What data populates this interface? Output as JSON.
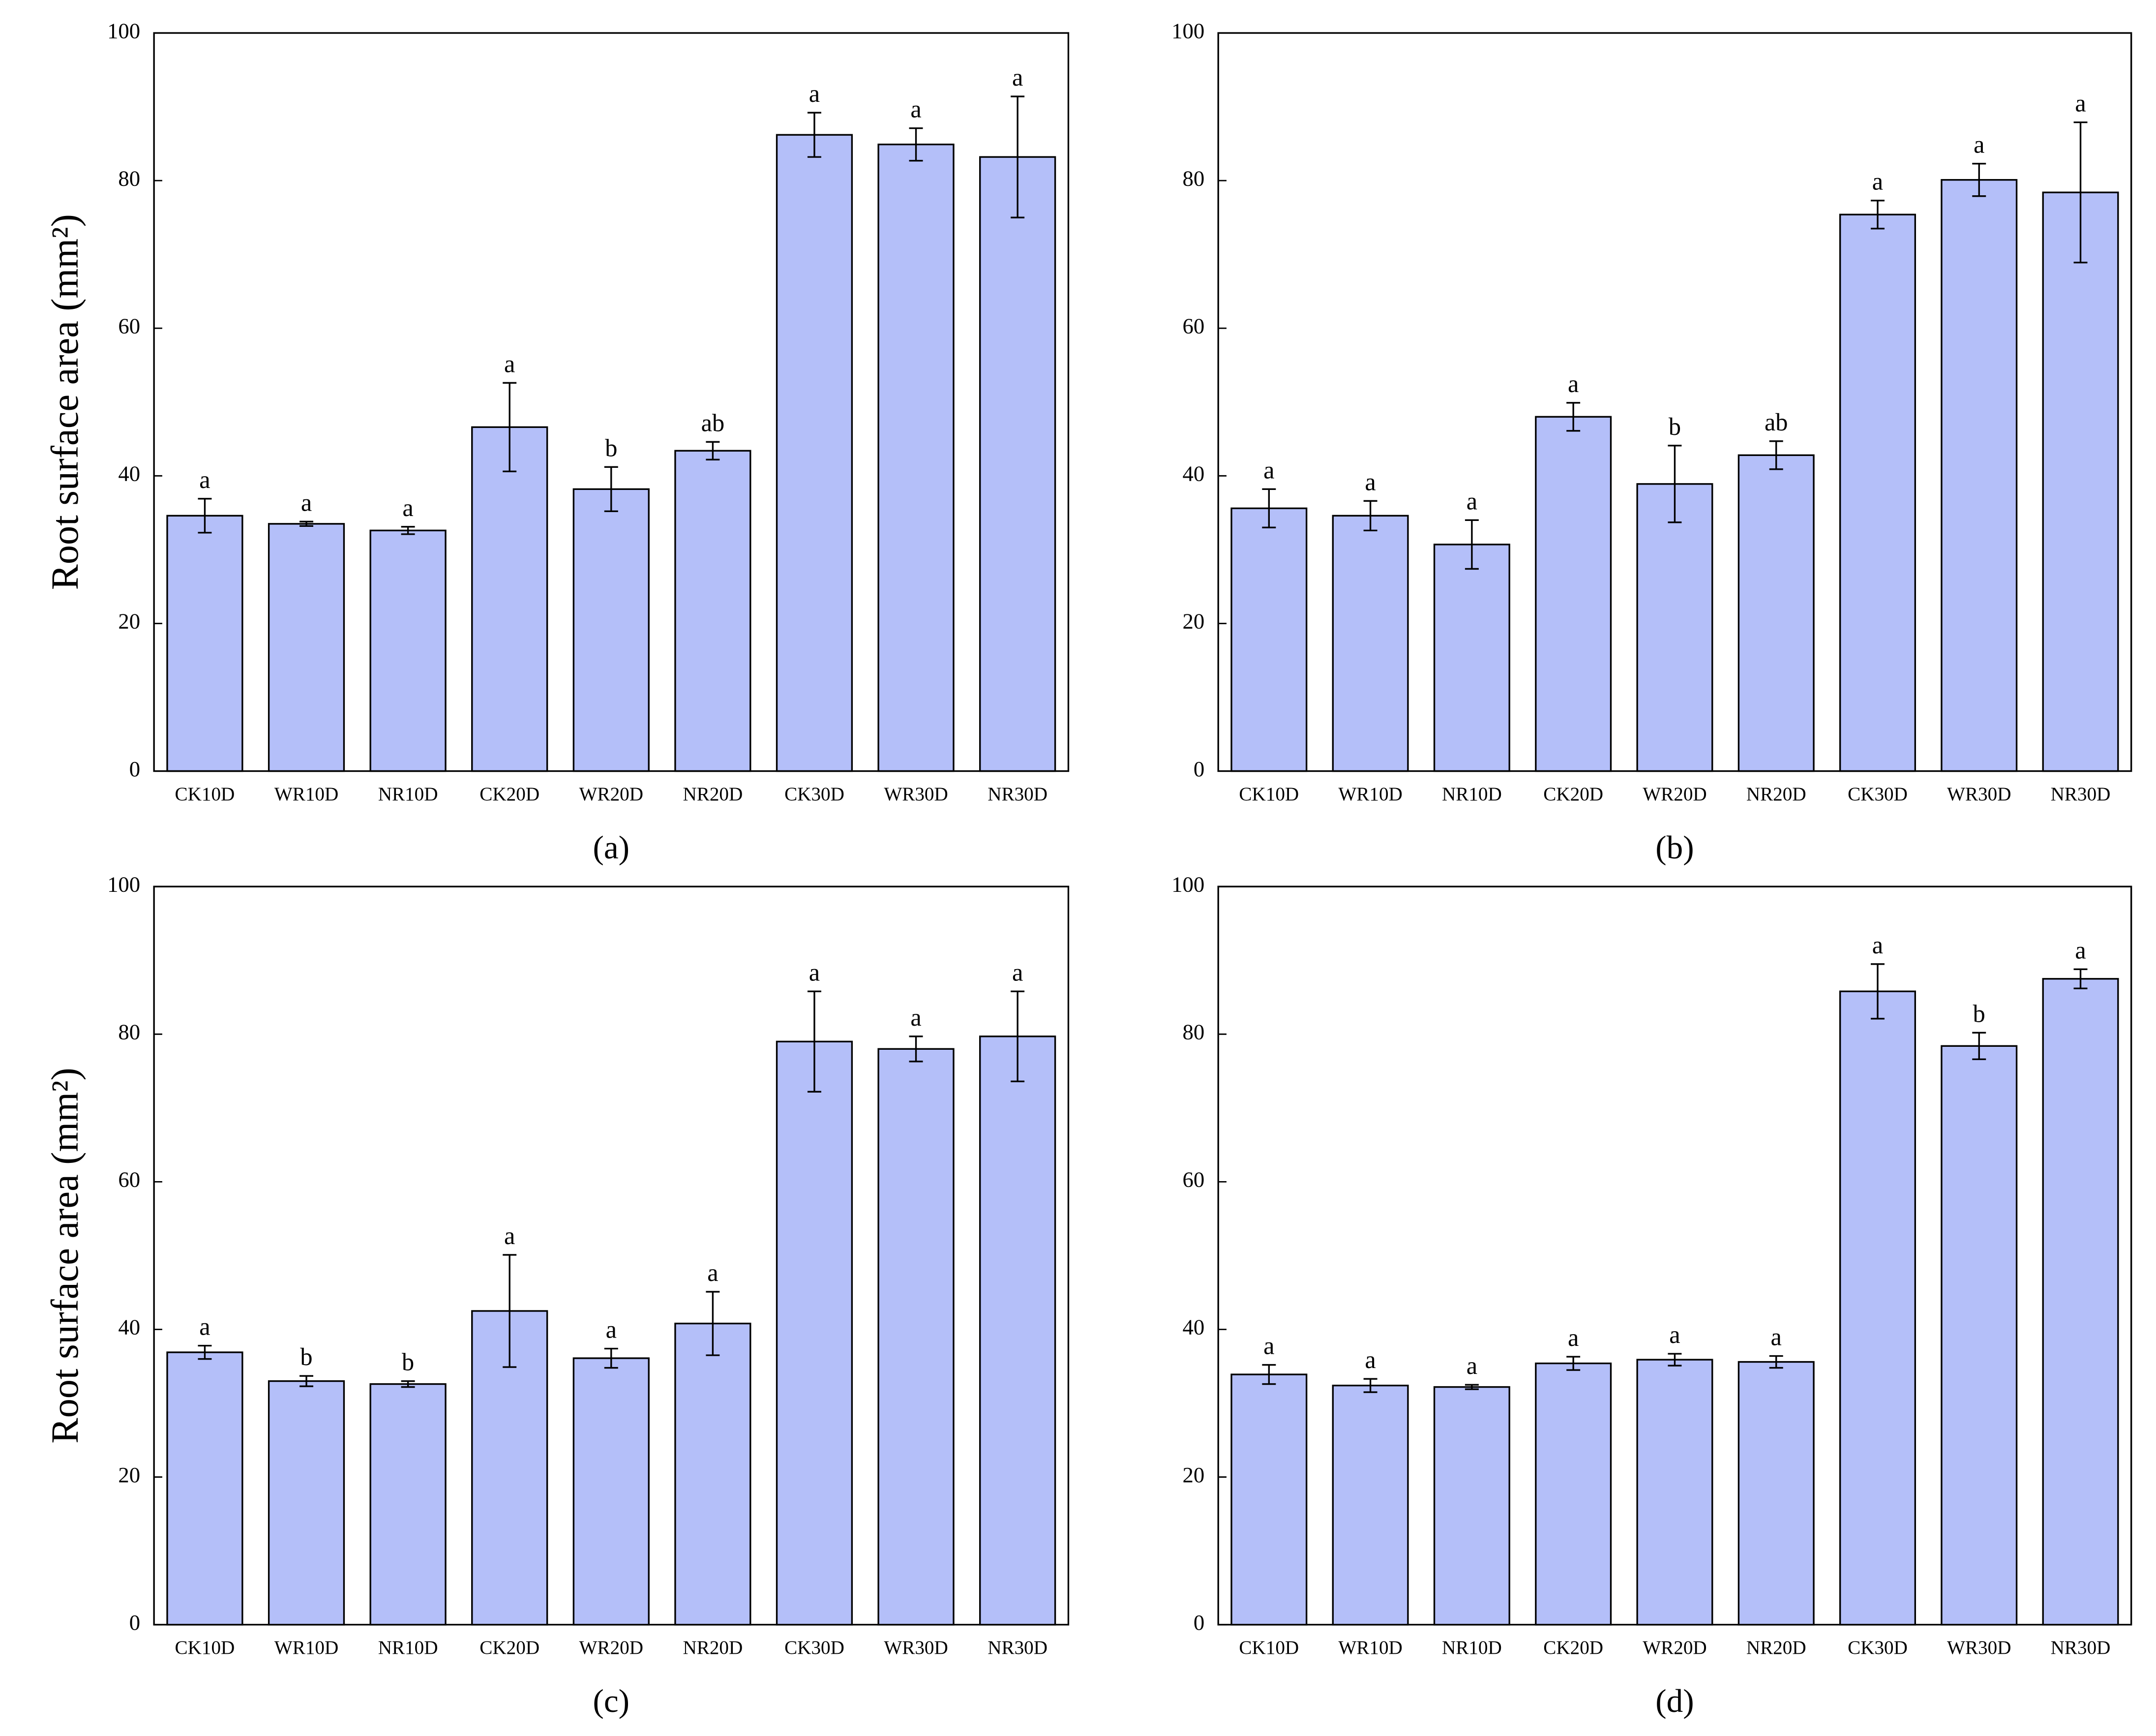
{
  "chart_data": [
    {
      "type": "bar",
      "ylabel": "Root surface area (mm²)",
      "caption": "(a)",
      "categories": [
        "CK10D",
        "WR10D",
        "NR10D",
        "CK20D",
        "WR20D",
        "NR20D",
        "CK30D",
        "WR30D",
        "NR30D"
      ],
      "values": [
        34.6,
        33.5,
        32.6,
        46.6,
        38.2,
        43.4,
        86.2,
        84.9,
        83.2
      ],
      "errors": [
        2.3,
        0.3,
        0.5,
        6.0,
        3.0,
        1.2,
        3.0,
        2.2,
        8.2
      ],
      "annotations": [
        "a",
        "a",
        "a",
        "a",
        "b",
        "ab",
        "a",
        "a",
        "a"
      ],
      "color": "#b4bff9",
      "ylim": [
        0,
        100
      ],
      "yticks": [
        0,
        20,
        40,
        60,
        80,
        100
      ]
    },
    {
      "type": "bar",
      "caption": "(b)",
      "categories": [
        "CK10D",
        "WR10D",
        "NR10D",
        "CK20D",
        "WR20D",
        "NR20D",
        "CK30D",
        "WR30D",
        "NR30D"
      ],
      "values": [
        35.6,
        34.6,
        30.7,
        48.0,
        38.9,
        42.8,
        75.4,
        80.1,
        78.4
      ],
      "errors": [
        2.6,
        2.0,
        3.3,
        1.9,
        5.2,
        1.9,
        1.9,
        2.2,
        9.5
      ],
      "annotations": [
        "a",
        "a",
        "a",
        "a",
        "b",
        "ab",
        "a",
        "a",
        "a"
      ],
      "color": "#b4bff9",
      "ylim": [
        0,
        100
      ],
      "yticks": [
        0,
        20,
        40,
        60,
        80,
        100
      ]
    },
    {
      "type": "bar",
      "ylabel": "Root surface area (mm²)",
      "caption": "(c)",
      "categories": [
        "CK10D",
        "WR10D",
        "NR10D",
        "CK20D",
        "WR20D",
        "NR20D",
        "CK30D",
        "WR30D",
        "NR30D"
      ],
      "values": [
        36.9,
        33.0,
        32.6,
        42.5,
        36.1,
        40.8,
        79.0,
        78.0,
        79.7
      ],
      "errors": [
        0.9,
        0.7,
        0.4,
        7.6,
        1.3,
        4.3,
        6.8,
        1.7,
        6.1
      ],
      "annotations": [
        "a",
        "b",
        "b",
        "a",
        "a",
        "a",
        "a",
        "a",
        "a"
      ],
      "color": "#b4bff9",
      "ylim": [
        0,
        100
      ],
      "yticks": [
        0,
        20,
        40,
        60,
        80,
        100
      ]
    },
    {
      "type": "bar",
      "caption": "(d)",
      "categories": [
        "CK10D",
        "WR10D",
        "NR10D",
        "CK20D",
        "WR20D",
        "NR20D",
        "CK30D",
        "WR30D",
        "NR30D"
      ],
      "values": [
        33.9,
        32.4,
        32.2,
        35.4,
        35.9,
        35.6,
        85.8,
        78.4,
        87.5
      ],
      "errors": [
        1.3,
        0.9,
        0.3,
        0.9,
        0.8,
        0.8,
        3.7,
        1.8,
        1.3
      ],
      "annotations": [
        "a",
        "a",
        "a",
        "a",
        "a",
        "a",
        "a",
        "b",
        "a"
      ],
      "color": "#b4bff9",
      "ylim": [
        0,
        100
      ],
      "yticks": [
        0,
        20,
        40,
        60,
        80,
        100
      ]
    }
  ]
}
